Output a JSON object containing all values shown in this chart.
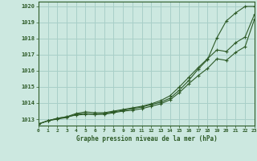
{
  "bg_color": "#cce8e0",
  "grid_color": "#a8cfc8",
  "line_color": "#2d5a27",
  "title": "Graphe pression niveau de la mer (hPa)",
  "xlim": [
    0,
    23
  ],
  "ylim": [
    1012.6,
    1020.3
  ],
  "yticks": [
    1013,
    1014,
    1015,
    1016,
    1017,
    1018,
    1019,
    1020
  ],
  "xticks": [
    0,
    1,
    2,
    3,
    4,
    5,
    6,
    7,
    8,
    9,
    10,
    11,
    12,
    13,
    14,
    15,
    16,
    17,
    18,
    19,
    20,
    21,
    22,
    23
  ],
  "series": [
    [
      1012.7,
      1012.9,
      1013.0,
      1013.1,
      1013.3,
      1013.35,
      1013.3,
      1013.35,
      1013.45,
      1013.55,
      1013.65,
      1013.75,
      1013.9,
      1014.05,
      1014.3,
      1014.8,
      1015.4,
      1016.1,
      1016.7,
      1018.05,
      1019.1,
      1019.6,
      1020.0,
      1020.0
    ],
    [
      1012.7,
      1012.9,
      1013.05,
      1013.15,
      1013.35,
      1013.45,
      1013.4,
      1013.4,
      1013.5,
      1013.6,
      1013.7,
      1013.8,
      1013.95,
      1014.15,
      1014.45,
      1015.0,
      1015.6,
      1016.2,
      1016.75,
      1017.3,
      1017.2,
      1017.75,
      1018.1,
      1019.5
    ],
    [
      1012.7,
      1012.9,
      1013.05,
      1013.15,
      1013.25,
      1013.3,
      1013.3,
      1013.3,
      1013.4,
      1013.5,
      1013.55,
      1013.65,
      1013.8,
      1013.95,
      1014.2,
      1014.65,
      1015.2,
      1015.7,
      1016.15,
      1016.75,
      1016.65,
      1017.15,
      1017.5,
      1019.2
    ]
  ]
}
